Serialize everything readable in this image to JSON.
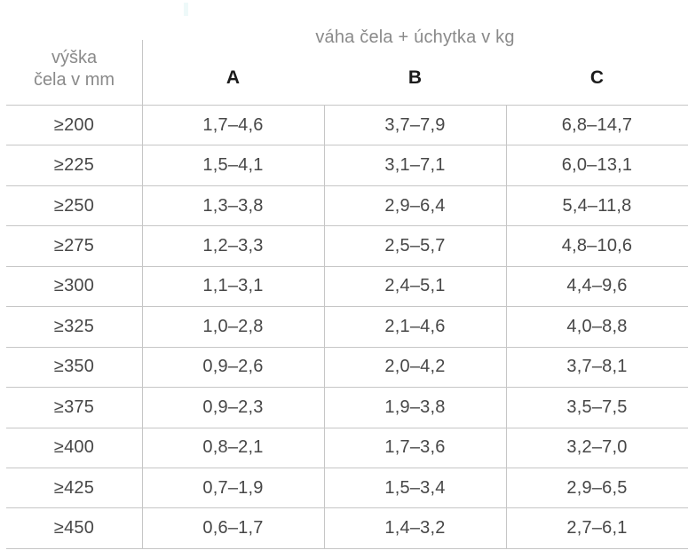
{
  "colors": {
    "background": "#ffffff",
    "muted_text": "#8a8a8a",
    "data_text": "#474747",
    "column_letter_text": "#1c1c1c",
    "grid_line": "#c6c6c6"
  },
  "table": {
    "title": "váha čela + úchytka v kg",
    "row_header": {
      "line1": "výška",
      "line2": "čela v mm"
    },
    "columns": [
      "A",
      "B",
      "C"
    ],
    "rows": [
      {
        "label": "≥200",
        "A": "1,7–4,6",
        "B": "3,7–7,9",
        "C": "6,8–14,7"
      },
      {
        "label": "≥225",
        "A": "1,5–4,1",
        "B": "3,1–7,1",
        "C": "6,0–13,1"
      },
      {
        "label": "≥250",
        "A": "1,3–3,8",
        "B": "2,9–6,4",
        "C": "5,4–11,8"
      },
      {
        "label": "≥275",
        "A": "1,2–3,3",
        "B": "2,5–5,7",
        "C": "4,8–10,6"
      },
      {
        "label": "≥300",
        "A": "1,1–3,1",
        "B": "2,4–5,1",
        "C": "4,4–9,6"
      },
      {
        "label": "≥325",
        "A": "1,0–2,8",
        "B": "2,1–4,6",
        "C": "4,0–8,8"
      },
      {
        "label": "≥350",
        "A": "0,9–2,6",
        "B": "2,0–4,2",
        "C": "3,7–8,1"
      },
      {
        "label": "≥375",
        "A": "0,9–2,3",
        "B": "1,9–3,8",
        "C": "3,5–7,5"
      },
      {
        "label": "≥400",
        "A": "0,8–2,1",
        "B": "1,7–3,6",
        "C": "3,2–7,0"
      },
      {
        "label": "≥425",
        "A": "0,7–1,9",
        "B": "1,5–3,4",
        "C": "2,9–6,5"
      },
      {
        "label": "≥450",
        "A": "0,6–1,7",
        "B": "1,4–3,2",
        "C": "2,7–6,1"
      }
    ]
  }
}
